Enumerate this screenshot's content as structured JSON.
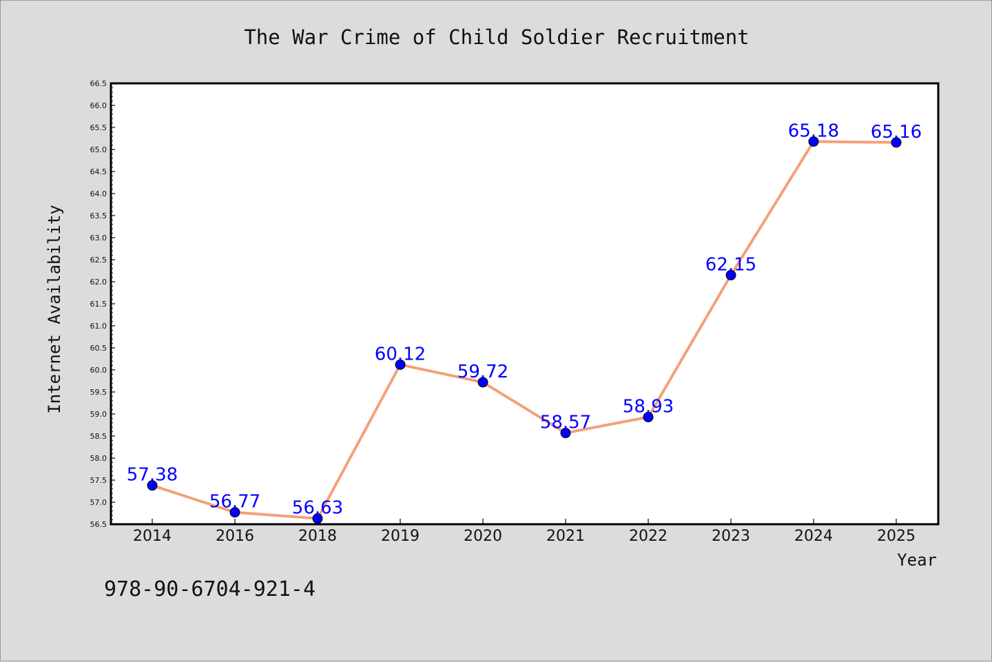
{
  "chart_data": {
    "type": "line",
    "title": "The War Crime of Child Soldier Recruitment",
    "xlabel": "Year",
    "ylabel": "Internet Availability",
    "categories": [
      "2014",
      "2016",
      "2018",
      "2019",
      "2020",
      "2021",
      "2022",
      "2023",
      "2024",
      "2025"
    ],
    "series": [
      {
        "values": [
          57.38,
          56.77,
          56.63,
          60.12,
          59.72,
          58.57,
          58.93,
          62.15,
          65.18,
          65.16
        ],
        "line_color": "#f4a07a",
        "marker_color": "#0000ff"
      }
    ],
    "data_labels": [
      "57.38",
      "56.77",
      "56.63",
      "60.12",
      "59.72",
      "58.57",
      "58.93",
      "62.15",
      "65.18",
      "65.16"
    ],
    "ylim": [
      56.5,
      66.5
    ],
    "yticks": [
      "56.5",
      "57.0",
      "57.5",
      "58.0",
      "58.5",
      "59.0",
      "59.5",
      "60.0",
      "60.5",
      "61.0",
      "61.5",
      "62.0",
      "62.5",
      "63.0",
      "63.5",
      "64.0",
      "64.5",
      "65.0",
      "65.5",
      "66.0",
      "66.5"
    ],
    "grid": false,
    "legend": "none"
  },
  "footer": {
    "isbn": "978-90-6704-921-4"
  },
  "colors": {
    "background": "#dcdcdc",
    "plot_area": "#ffffff",
    "line": "#f4a07a",
    "marker": "#0000ff",
    "data_label": "#0000ff"
  }
}
